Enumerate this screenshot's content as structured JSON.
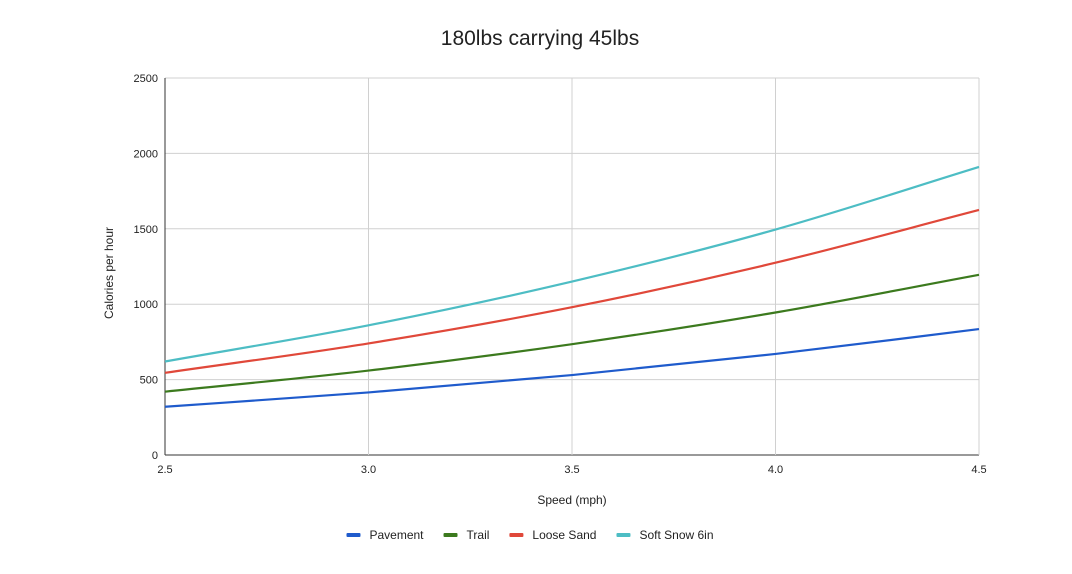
{
  "chart_data": {
    "type": "line",
    "title": "180lbs carrying 45lbs",
    "xlabel": "Speed (mph)",
    "ylabel": "Calories per hour",
    "xlim": [
      2.5,
      4.5
    ],
    "ylim": [
      0,
      2500
    ],
    "x_ticks": [
      "2.5",
      "3.0",
      "3.5",
      "4.0",
      "4.5"
    ],
    "y_ticks": [
      "0",
      "500",
      "1000",
      "1500",
      "2000",
      "2500"
    ],
    "grid": true,
    "legend_position": "bottom",
    "x": [
      2.5,
      3.0,
      3.5,
      4.0,
      4.5
    ],
    "series": [
      {
        "name": "Pavement",
        "color": "#1f5bcc",
        "values": [
          320,
          415,
          530,
          670,
          835
        ]
      },
      {
        "name": "Trail",
        "color": "#3c7a1e",
        "values": [
          420,
          560,
          735,
          945,
          1195
        ]
      },
      {
        "name": "Loose Sand",
        "color": "#e0483a",
        "values": [
          545,
          740,
          980,
          1275,
          1625
        ]
      },
      {
        "name": "Soft Snow 6in",
        "color": "#4dbdc4",
        "values": [
          620,
          860,
          1150,
          1495,
          1910
        ]
      }
    ]
  }
}
